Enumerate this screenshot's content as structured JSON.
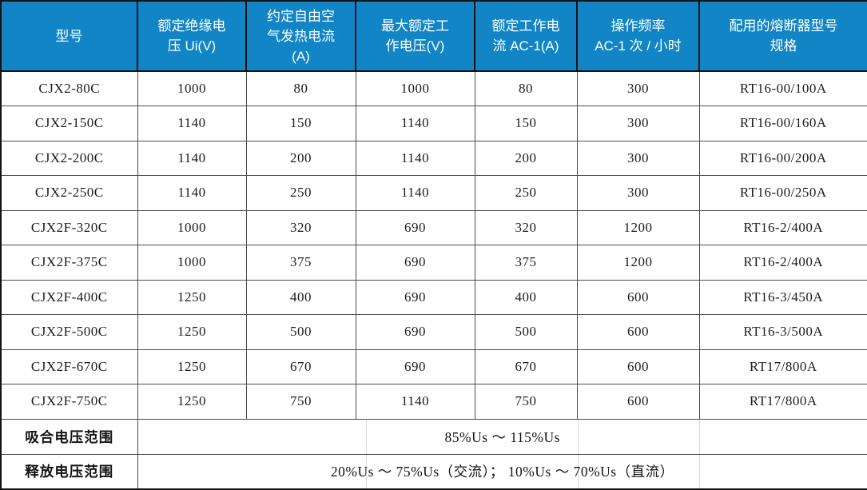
{
  "colors": {
    "header_bg": "#1185c5",
    "header_text": "#ffffff",
    "grid_line": "#4c4c4c",
    "outer_border": "#121212",
    "body_text": "#1c1c1c"
  },
  "table": {
    "headers": [
      "型号",
      "额定绝缘电\n压 Ui(V)",
      "约定自由空\n气发热电流\n(A)",
      "最大额定工\n作电压(V)",
      "额定工作电\n流 AC-1(A)",
      "操作频率\nAC-1 次 / 小时",
      "配用的熔断器型号\n规格"
    ],
    "rows": [
      [
        "CJX2-80C",
        "1000",
        "80",
        "1000",
        "80",
        "300",
        "RT16-00/100A"
      ],
      [
        "CJX2-150C",
        "1140",
        "150",
        "1140",
        "150",
        "300",
        "RT16-00/160A"
      ],
      [
        "CJX2-200C",
        "1140",
        "200",
        "1140",
        "200",
        "300",
        "RT16-00/200A"
      ],
      [
        "CJX2-250C",
        "1140",
        "250",
        "1140",
        "250",
        "300",
        "RT16-00/250A"
      ],
      [
        "CJX2F-320C",
        "1000",
        "320",
        "690",
        "320",
        "1200",
        "RT16-2/400A"
      ],
      [
        "CJX2F-375C",
        "1000",
        "375",
        "690",
        "375",
        "1200",
        "RT16-2/400A"
      ],
      [
        "CJX2F-400C",
        "1250",
        "400",
        "690",
        "400",
        "600",
        "RT16-3/450A"
      ],
      [
        "CJX2F-500C",
        "1250",
        "500",
        "690",
        "500",
        "600",
        "RT16-3/500A"
      ],
      [
        "CJX2F-670C",
        "1250",
        "670",
        "690",
        "670",
        "600",
        "RT17/800A"
      ],
      [
        "CJX2F-750C",
        "1250",
        "750",
        "1140",
        "750",
        "600",
        "RT17/800A"
      ]
    ],
    "footer_rows": [
      {
        "label": "吸合电压范围",
        "value": "85%Us ～ 115%Us"
      },
      {
        "label": "释放电压范围",
        "value": "20%Us ～ 75%Us（交流）； 10%Us ～ 70%Us（直流）"
      }
    ]
  }
}
